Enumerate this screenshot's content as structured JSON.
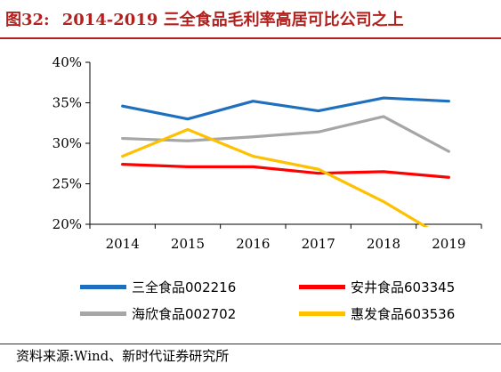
{
  "header": {
    "figure_label": "图32:",
    "title": "2014-2019 三全食品毛利率高居可比公司之上"
  },
  "source": "资料来源:Wind、新时代证券研究所",
  "chart_data": {
    "type": "line",
    "title": "2014-2019 三全食品毛利率高居可比公司之上",
    "xlabel": "",
    "ylabel": "",
    "x": [
      "2014",
      "2015",
      "2016",
      "2017",
      "2018",
      "2019"
    ],
    "ylim": [
      20,
      40
    ],
    "yticks": [
      20,
      25,
      30,
      35,
      40
    ],
    "ytick_labels": [
      "20%",
      "25%",
      "30%",
      "35%",
      "40%"
    ],
    "grid": false,
    "legend_position": "bottom",
    "series": [
      {
        "name": "三全食品002216",
        "color": "#1f6fbf",
        "values": [
          34.6,
          33.0,
          35.2,
          34.0,
          35.6,
          35.2
        ]
      },
      {
        "name": "安井食品603345",
        "color": "#ff0000",
        "values": [
          27.4,
          27.1,
          27.1,
          26.3,
          26.5,
          25.8
        ]
      },
      {
        "name": "海欣食品002702",
        "color": "#a6a6a6",
        "values": [
          30.6,
          30.3,
          30.8,
          31.4,
          33.3,
          29.0
        ]
      },
      {
        "name": "惠发食品603536",
        "color": "#ffc000",
        "values": [
          28.4,
          31.7,
          28.4,
          26.8,
          22.8,
          18.0
        ]
      }
    ]
  }
}
